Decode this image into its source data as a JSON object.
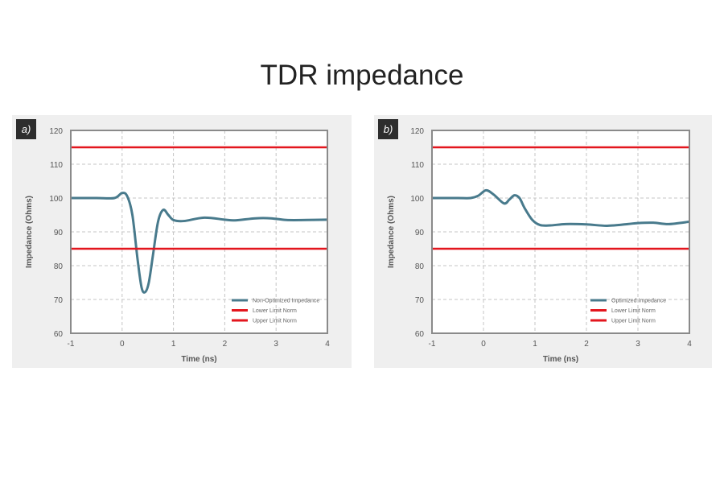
{
  "page_title": "TDR impedance",
  "colors": {
    "panel_bg": "#efefef",
    "signal": "#487a8c",
    "limit": "#e3161e",
    "frame": "#8a8a8a",
    "grid": "#c4c4c4",
    "badge": "#2d2d2d"
  },
  "chart_data": [
    {
      "type": "line",
      "panel_label": "a)",
      "xlabel": "Time (ns)",
      "ylabel": "Impedance (Ohms)",
      "xlim": [
        -1,
        4
      ],
      "ylim": [
        60,
        120
      ],
      "xticks": [
        "-1",
        "0",
        "1",
        "2",
        "3",
        "4"
      ],
      "yticks": [
        "60",
        "70",
        "80",
        "90",
        "100",
        "110",
        "120"
      ],
      "grid": true,
      "legend_position": "bottom-right",
      "series": [
        {
          "name": "Non-Optimized Impedance",
          "color": "#487a8c",
          "x": [
            -1,
            -0.5,
            -0.15,
            0,
            0.1,
            0.2,
            0.3,
            0.38,
            0.45,
            0.52,
            0.6,
            0.7,
            0.8,
            0.9,
            1.0,
            1.2,
            1.6,
            2.0,
            2.2,
            2.6,
            2.9,
            3.2,
            3.6,
            4.0
          ],
          "y": [
            100,
            100,
            100,
            101.5,
            100.5,
            95,
            82,
            73.5,
            72.2,
            75,
            83,
            93,
            96.5,
            95,
            93.5,
            93.2,
            94.2,
            93.6,
            93.4,
            94,
            94,
            93.5,
            93.5,
            93.6
          ]
        },
        {
          "name": "Lower Limit Norm",
          "color": "#e3161e",
          "x": [
            -1,
            4
          ],
          "y": [
            85,
            85
          ]
        },
        {
          "name": "Upper Limit Norm",
          "color": "#e3161e",
          "x": [
            -1,
            4
          ],
          "y": [
            115,
            115
          ]
        }
      ]
    },
    {
      "type": "line",
      "panel_label": "b)",
      "xlabel": "Time (ns)",
      "ylabel": "Impedance (Ohms)",
      "xlim": [
        -1,
        4
      ],
      "ylim": [
        60,
        120
      ],
      "xticks": [
        "-1",
        "0",
        "1",
        "2",
        "3",
        "4"
      ],
      "yticks": [
        "60",
        "70",
        "80",
        "90",
        "100",
        "110",
        "120"
      ],
      "grid": true,
      "legend_position": "bottom-right",
      "series": [
        {
          "name": "Optimized Impedance",
          "color": "#487a8c",
          "x": [
            -1,
            -0.5,
            -0.25,
            -0.1,
            0.05,
            0.2,
            0.4,
            0.5,
            0.6,
            0.7,
            0.8,
            0.95,
            1.1,
            1.3,
            1.6,
            2.0,
            2.4,
            2.8,
            3.0,
            3.3,
            3.6,
            4.0
          ],
          "y": [
            100,
            100,
            100,
            100.7,
            102.3,
            101,
            98.4,
            99.5,
            100.8,
            100,
            97,
            93.5,
            92,
            91.9,
            92.3,
            92.2,
            91.8,
            92.3,
            92.6,
            92.7,
            92.3,
            93
          ]
        },
        {
          "name": "Lower Limit Norm",
          "color": "#e3161e",
          "x": [
            -1,
            4
          ],
          "y": [
            85,
            85
          ]
        },
        {
          "name": "Upper Limit Norm",
          "color": "#e3161e",
          "x": [
            -1,
            4
          ],
          "y": [
            115,
            115
          ]
        }
      ]
    }
  ]
}
